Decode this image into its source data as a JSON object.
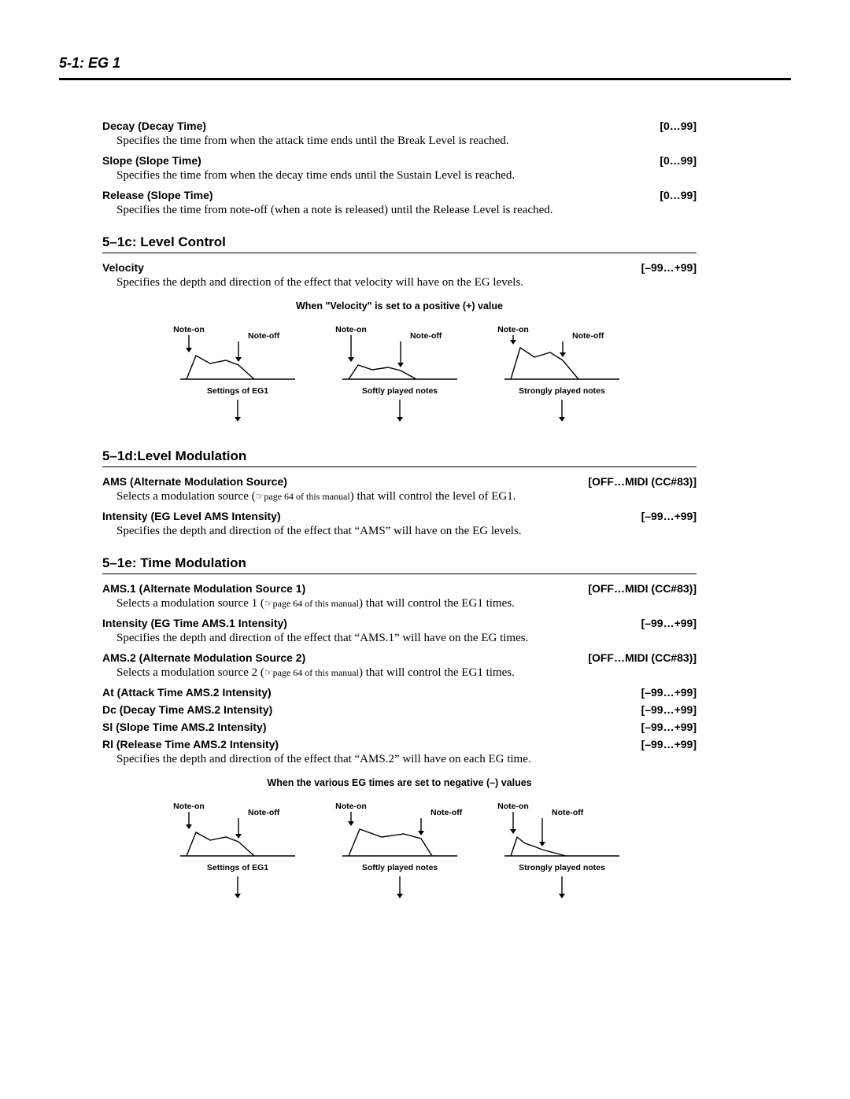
{
  "header": "5-1: EG 1",
  "params_top": [
    {
      "name": "Decay (Decay Time)",
      "range": "[0…99]",
      "desc": "Specifies the time from when the attack time ends until the Break Level is reached."
    },
    {
      "name": "Slope (Slope Time)",
      "range": "[0…99]",
      "desc": "Specifies the time from when the decay time ends until the Sustain Level is reached."
    },
    {
      "name": "Release (Slope Time)",
      "range": "[0…99]",
      "desc": "Specifies the time from note-off (when a note is released) until the Release Level is reached."
    }
  ],
  "section_1c": {
    "title": "5–1c: Level Control",
    "params": [
      {
        "name": "Velocity",
        "range": "[–99…+99]",
        "desc": "Specifies the depth and direction of the effect that velocity will have on the EG levels."
      }
    ]
  },
  "diagram1": {
    "title": "When \"Velocity\" is set to a positive (+) value",
    "labels": {
      "note_on": "Note-on",
      "note_off": "Note-off",
      "captions": [
        "Settings of EG1",
        "Softly played notes",
        "Strongly played notes"
      ]
    },
    "envelope_heights": [
      [
        30,
        20,
        24,
        18
      ],
      [
        18,
        12,
        15,
        11
      ],
      [
        40,
        28,
        34,
        24
      ]
    ],
    "colors": {
      "stroke": "#000000",
      "arrow_fill": "#000000",
      "bg": "#ffffff"
    },
    "font_size_labels": 10.5,
    "line_width": 1.4
  },
  "section_1d": {
    "title": "5–1d:Level Modulation",
    "params": [
      {
        "name": "AMS (Alternate Modulation Source)",
        "range": "[OFF…MIDI (CC#83)]",
        "desc_pre": "Selects a modulation source (",
        "desc_ref": "☞page 64 of this manual",
        "desc_post": ") that will control the level of EG1."
      },
      {
        "name": "Intensity (EG Level AMS Intensity)",
        "range": "[–99…+99]",
        "desc": "Specifies the depth and direction of the effect that “AMS” will have on the EG levels."
      }
    ]
  },
  "section_1e": {
    "title": "5–1e: Time Modulation",
    "params": [
      {
        "name": "AMS.1 (Alternate Modulation Source 1)",
        "range": "[OFF…MIDI (CC#83)]",
        "desc_pre": "Selects a modulation source 1 (",
        "desc_ref": "☞page 64 of this manual",
        "desc_post": ") that will control the EG1 times."
      },
      {
        "name": "Intensity (EG Time AMS.1 Intensity)",
        "range": "[–99…+99]",
        "desc": "Specifies the depth and direction of the effect that “AMS.1” will have on the EG times."
      },
      {
        "name": "AMS.2 (Alternate Modulation Source 2)",
        "range": "[OFF…MIDI (CC#83)]",
        "desc_pre": "Selects a modulation source 2 (",
        "desc_ref": "☞page 64 of this manual",
        "desc_post": ") that will control the EG1 times."
      },
      {
        "name": "At (Attack Time AMS.2 Intensity)",
        "range": "[–99…+99]"
      },
      {
        "name": "Dc (Decay Time AMS.2 Intensity)",
        "range": "[–99…+99]"
      },
      {
        "name": "Sl (Slope Time AMS.2 Intensity)",
        "range": "[–99…+99]"
      },
      {
        "name": "Rl (Release Time AMS.2 Intensity)",
        "range": "[–99…+99]",
        "desc": "Specifies the depth and direction of the effect that “AMS.2” will have on each EG time."
      }
    ]
  },
  "diagram2": {
    "title": "When the various EG times are set to negative (–) values",
    "labels": {
      "note_on": "Note-on",
      "note_off": "Note-off",
      "captions": [
        "Settings of EG1",
        "Softly played notes",
        "Strongly played notes"
      ]
    },
    "envelope_heights": [
      [
        30,
        20,
        24,
        18
      ],
      [
        34,
        24,
        28,
        22
      ],
      [
        24,
        16,
        12,
        8
      ]
    ],
    "envelope_widths": [
      [
        12,
        18,
        20,
        16,
        20
      ],
      [
        14,
        28,
        28,
        22,
        14
      ],
      [
        8,
        10,
        12,
        10,
        30
      ]
    ],
    "colors": {
      "stroke": "#000000",
      "arrow_fill": "#000000",
      "bg": "#ffffff"
    },
    "font_size_labels": 10.5,
    "line_width": 1.4
  }
}
